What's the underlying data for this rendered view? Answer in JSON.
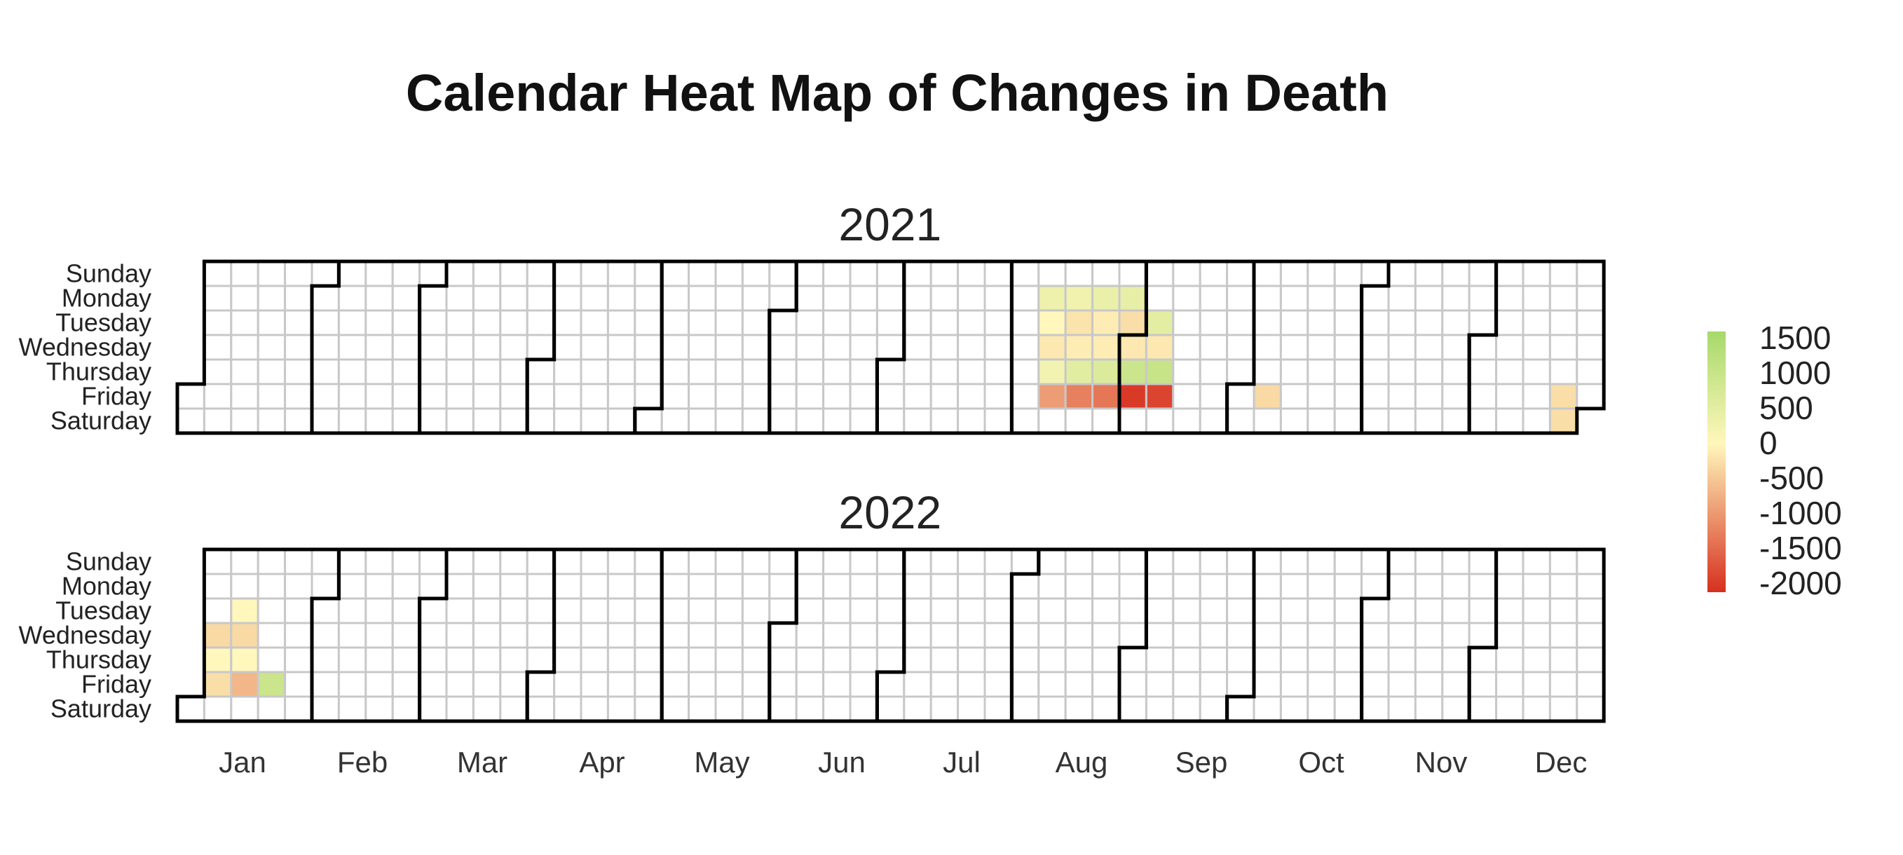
{
  "chart_data": {
    "type": "heatmap",
    "title": "Calendar Heat Map of Changes in Death",
    "years": [
      2021,
      2022
    ],
    "weekday_labels": [
      "Sunday",
      "Monday",
      "Tuesday",
      "Wednesday",
      "Thursday",
      "Friday",
      "Saturday"
    ],
    "month_labels": [
      "Jan",
      "Feb",
      "Mar",
      "Apr",
      "May",
      "Jun",
      "Jul",
      "Aug",
      "Sep",
      "Oct",
      "Nov",
      "Dec"
    ],
    "colorbar": {
      "ticks": [
        1500,
        1000,
        500,
        0,
        -500,
        -1000,
        -1500,
        -2000
      ],
      "range": [
        -2000,
        1500
      ],
      "low_color": "#d7301f",
      "mid_color": "#fff7bc",
      "high_color": "#a6d96a"
    },
    "empty_color": "#ffffff",
    "grid_color": "#c8c8c8",
    "values": [
      {
        "date": "2021-08-09",
        "value": 300
      },
      {
        "date": "2021-08-10",
        "value": 0
      },
      {
        "date": "2021-08-11",
        "value": -150
      },
      {
        "date": "2021-08-12",
        "value": 200
      },
      {
        "date": "2021-08-13",
        "value": -900
      },
      {
        "date": "2021-08-16",
        "value": 250
      },
      {
        "date": "2021-08-17",
        "value": -200
      },
      {
        "date": "2021-08-18",
        "value": -100
      },
      {
        "date": "2021-08-19",
        "value": 500
      },
      {
        "date": "2021-08-20",
        "value": -1200
      },
      {
        "date": "2021-08-23",
        "value": 350
      },
      {
        "date": "2021-08-24",
        "value": -100
      },
      {
        "date": "2021-08-25",
        "value": -100
      },
      {
        "date": "2021-08-26",
        "value": 600
      },
      {
        "date": "2021-08-27",
        "value": -1300
      },
      {
        "date": "2021-08-30",
        "value": 400
      },
      {
        "date": "2021-08-31",
        "value": -250
      },
      {
        "date": "2021-09-01",
        "value": -150
      },
      {
        "date": "2021-09-02",
        "value": 900
      },
      {
        "date": "2021-09-03",
        "value": -1900
      },
      {
        "date": "2021-09-07",
        "value": 450
      },
      {
        "date": "2021-09-08",
        "value": -150
      },
      {
        "date": "2021-09-09",
        "value": 950
      },
      {
        "date": "2021-09-10",
        "value": -1800
      },
      {
        "date": "2021-10-08",
        "value": -300
      },
      {
        "date": "2021-12-24",
        "value": -250
      },
      {
        "date": "2021-12-25",
        "value": -250
      },
      {
        "date": "2022-01-05",
        "value": -300
      },
      {
        "date": "2022-01-06",
        "value": 0
      },
      {
        "date": "2022-01-07",
        "value": -250
      },
      {
        "date": "2022-01-11",
        "value": 0
      },
      {
        "date": "2022-01-12",
        "value": -300
      },
      {
        "date": "2022-01-13",
        "value": 0
      },
      {
        "date": "2022-01-14",
        "value": -650
      },
      {
        "date": "2022-01-21",
        "value": 900
      }
    ]
  }
}
